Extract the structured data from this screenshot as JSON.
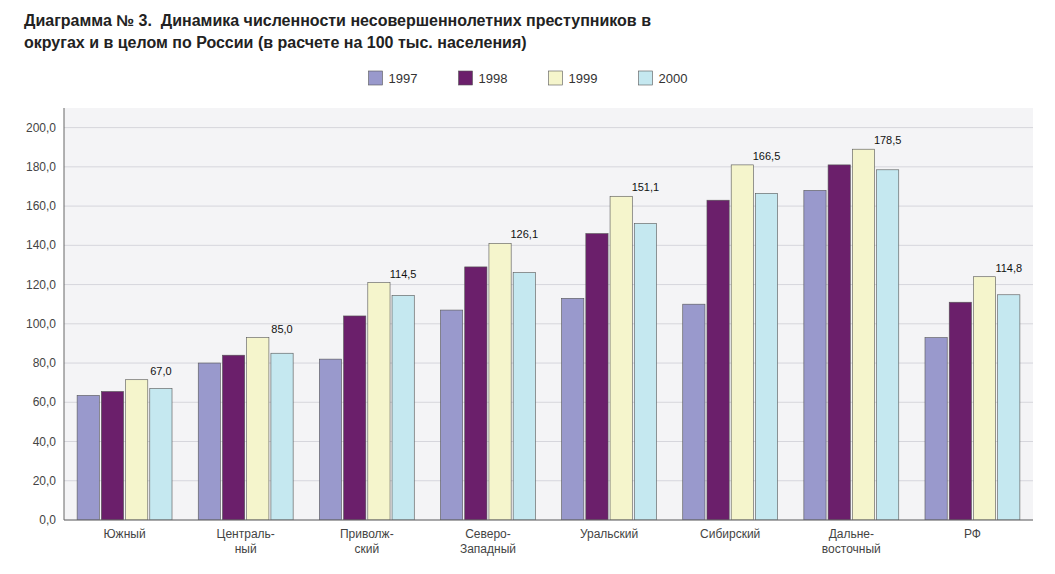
{
  "chart_data": {
    "type": "bar",
    "title": "Диаграмма № 3.  Динамика численности несовершеннолетних преступников в",
    "subtitle": "округах и в целом по России (в расчете на 100 тыс. населения)",
    "categories": [
      "Южный",
      "Централь-\nный",
      "Приволж-\nский",
      "Северо-\nЗападный",
      "Уральский",
      "Сибирский",
      "Дальне-\nвосточный",
      "РФ"
    ],
    "series": [
      {
        "name": "1997",
        "color": "#9999cc",
        "values": [
          63.5,
          80.0,
          82.0,
          107.0,
          113.0,
          110.0,
          168.0,
          93.0
        ]
      },
      {
        "name": "1998",
        "color": "#6b1f6b",
        "values": [
          65.5,
          84.0,
          104.0,
          129.0,
          146.0,
          163.0,
          181.0,
          111.0
        ]
      },
      {
        "name": "1999",
        "color": "#f5f5cc",
        "values": [
          71.5,
          93.0,
          121.0,
          141.0,
          165.0,
          181.0,
          189.0,
          124.0
        ]
      },
      {
        "name": "2000",
        "color": "#c5e8f0",
        "values": [
          67.0,
          85.0,
          114.5,
          126.1,
          151.1,
          166.5,
          178.5,
          114.8
        ],
        "data_labels": true,
        "value_labels": [
          "67,0",
          "85,0",
          "114,5",
          "126,1",
          "151,1",
          "166,5",
          "178,5",
          "114,8"
        ]
      }
    ],
    "ylim": [
      0,
      210
    ],
    "yticks": [
      {
        "value": 0,
        "label": "0,0"
      },
      {
        "value": 20,
        "label": "20,0"
      },
      {
        "value": 40,
        "label": "40,0"
      },
      {
        "value": 60,
        "label": "60,0"
      },
      {
        "value": 80,
        "label": "80,0"
      },
      {
        "value": 100,
        "label": "100,0"
      },
      {
        "value": 120,
        "label": "120,0"
      },
      {
        "value": 140,
        "label": "140,0"
      },
      {
        "value": 160,
        "label": "160,0"
      },
      {
        "value": 180,
        "label": "180,0"
      },
      {
        "value": 200,
        "label": "200,0"
      }
    ],
    "grid": true,
    "legend": "top"
  }
}
